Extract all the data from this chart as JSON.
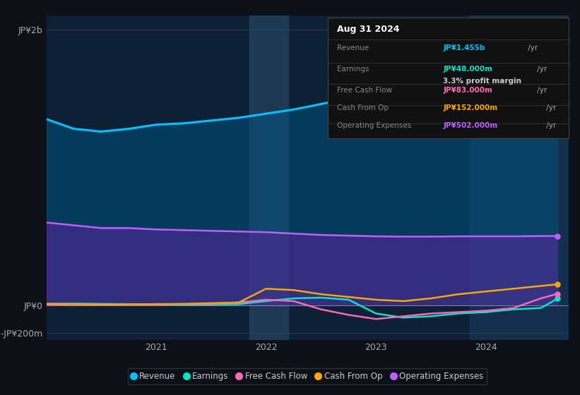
{
  "background_color": "#0d1117",
  "chart_bg": "#0d2035",
  "ylabel_top": "JP¥2b",
  "ylabel_zero": "JP¥0",
  "ylabel_neg": "-JP¥200m",
  "xticks": [
    "2021",
    "2022",
    "2023",
    "2024"
  ],
  "tooltip_date": "Aug 31 2024",
  "tooltip_rows": [
    {
      "label": "Revenue",
      "value": "JP¥1.455b",
      "suffix": " /yr",
      "color": "#00bfff",
      "extra": ""
    },
    {
      "label": "Earnings",
      "value": "JP¥48.000m",
      "suffix": " /yr",
      "color": "#00e5cc",
      "extra": "3.3% profit margin"
    },
    {
      "label": "Free Cash Flow",
      "value": "JP¥83.000m",
      "suffix": " /yr",
      "color": "#ff69b4",
      "extra": ""
    },
    {
      "label": "Cash From Op",
      "value": "JP¥152.000m",
      "suffix": " /yr",
      "color": "#ffa500",
      "extra": ""
    },
    {
      "label": "Operating Expenses",
      "value": "JP¥502.000m",
      "suffix": " /yr",
      "color": "#bf5fff",
      "extra": ""
    }
  ],
  "series": {
    "x": [
      2020.0,
      2020.25,
      2020.5,
      2020.75,
      2021.0,
      2021.25,
      2021.5,
      2021.75,
      2022.0,
      2022.25,
      2022.5,
      2022.75,
      2023.0,
      2023.25,
      2023.5,
      2023.75,
      2024.0,
      2024.25,
      2024.5,
      2024.65
    ],
    "Revenue": [
      1350,
      1280,
      1260,
      1280,
      1310,
      1320,
      1340,
      1360,
      1390,
      1420,
      1460,
      1500,
      1530,
      1560,
      1580,
      1600,
      1610,
      1630,
      1650,
      1455
    ],
    "Earnings": [
      10,
      12,
      10,
      8,
      5,
      3,
      5,
      8,
      30,
      50,
      55,
      40,
      -60,
      -90,
      -80,
      -60,
      -50,
      -30,
      -20,
      48
    ],
    "FreeCashFlow": [
      5,
      4,
      3,
      5,
      6,
      8,
      10,
      20,
      40,
      30,
      -30,
      -70,
      -100,
      -80,
      -60,
      -50,
      -40,
      -20,
      50,
      83
    ],
    "CashFromOp": [
      10,
      8,
      5,
      6,
      8,
      10,
      15,
      20,
      120,
      110,
      80,
      60,
      40,
      30,
      50,
      80,
      100,
      120,
      140,
      152
    ],
    "OperatingExpenses": [
      600,
      580,
      560,
      560,
      550,
      545,
      540,
      535,
      530,
      520,
      510,
      505,
      500,
      498,
      498,
      500,
      500,
      500,
      502,
      502
    ]
  },
  "legend": [
    {
      "label": "Revenue",
      "color": "#00bfff"
    },
    {
      "label": "Earnings",
      "color": "#00e5cc"
    },
    {
      "label": "Free Cash Flow",
      "color": "#ff69b4"
    },
    {
      "label": "Cash From Op",
      "color": "#ffa500"
    },
    {
      "label": "Operating Expenses",
      "color": "#bf5fff"
    }
  ],
  "ylim": [
    -250,
    2100
  ],
  "xlim": [
    2020.0,
    2024.75
  ],
  "highlight_x_start": 2021.85,
  "highlight_x_end": 2022.2,
  "highlight2_x_start": 2023.85,
  "highlight2_x_end": 2024.75
}
